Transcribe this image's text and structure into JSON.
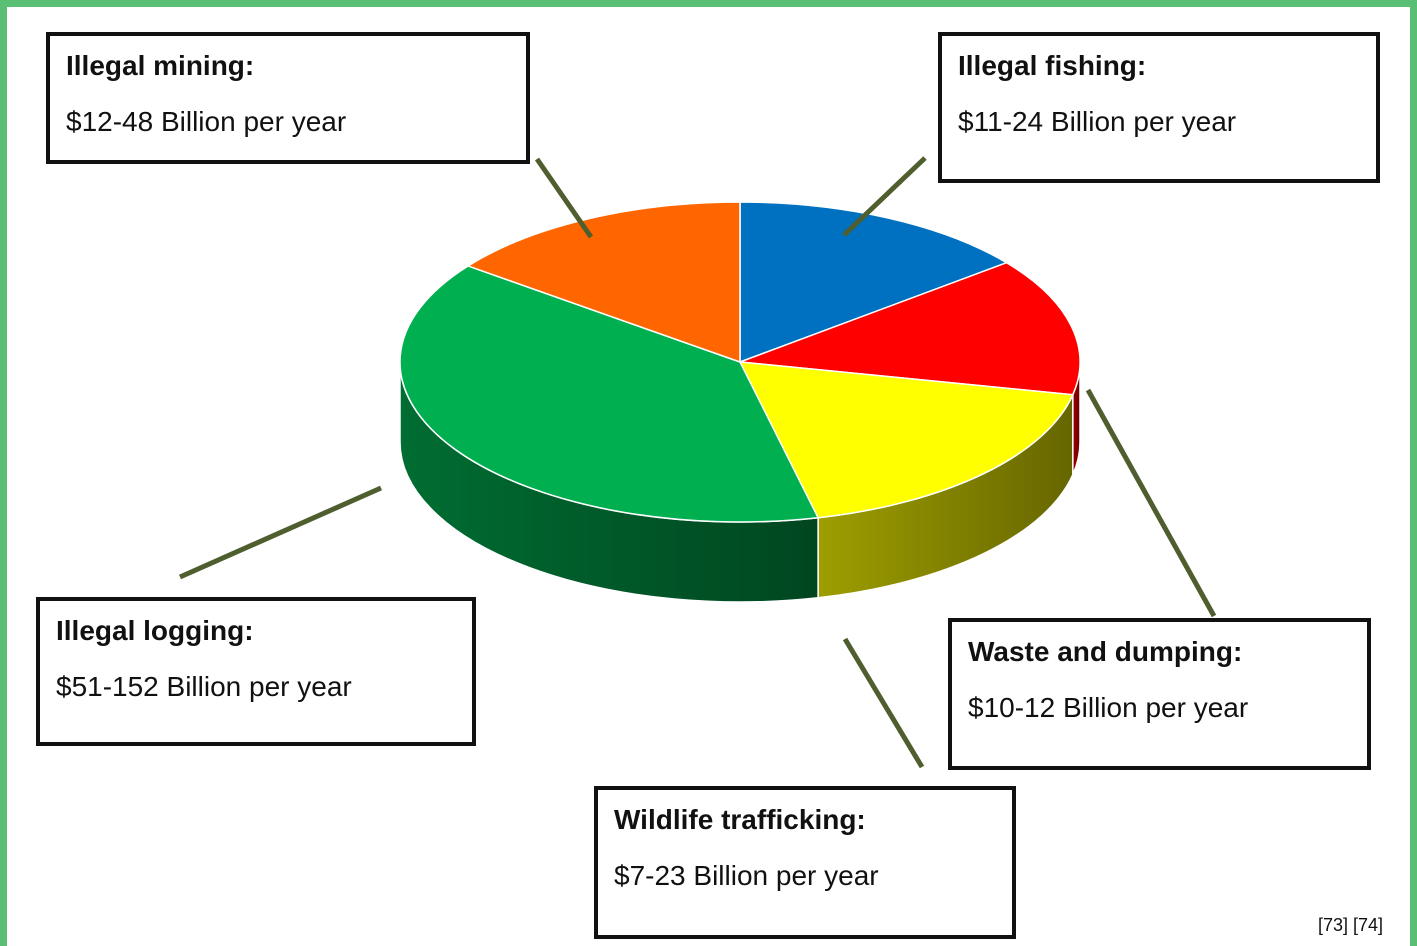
{
  "chart_data": {
    "type": "pie",
    "style": "3d",
    "slices": [
      {
        "label": "Illegal fishing",
        "value_text": "$11-24 Billion per year",
        "low": 11,
        "high": 24,
        "value": 17.5,
        "color": "#0070c0"
      },
      {
        "label": "Waste and dumping",
        "value_text": "$10-12 Billion per year",
        "low": 10,
        "high": 12,
        "value": 17,
        "color": "#ff0000"
      },
      {
        "label": "Wildlife trafficking",
        "value_text": "$7-23 Billion per year",
        "low": 7,
        "high": 23,
        "value": 22,
        "color": "#ffff00"
      },
      {
        "label": "Illegal logging",
        "value_text": "$51-152 Billion per year",
        "low": 51,
        "high": 152,
        "value": 47.5,
        "color": "#00b050"
      },
      {
        "label": "Illegal mining",
        "value_text": "$12-48 Billion per year",
        "low": 12,
        "high": 48,
        "value": 18,
        "color": "#ff6600"
      }
    ],
    "source": "[73] [74]"
  },
  "callouts": {
    "mining": {
      "name": "Illegal mining:",
      "value": "$12-48 Billion per year"
    },
    "fishing": {
      "name": "Illegal fishing:",
      "value": "$11-24 Billion per year"
    },
    "logging": {
      "name": "Illegal logging:",
      "value": "$51-152 Billion per year"
    },
    "waste": {
      "name": "Waste and dumping:",
      "value": "$10-12 Billion per year"
    },
    "wildlife": {
      "name": "Wildlife trafficking:",
      "value": "$7-23 Billion per year"
    }
  },
  "colors": {
    "border": "#58bf73",
    "leader": "#4f5e2e"
  }
}
